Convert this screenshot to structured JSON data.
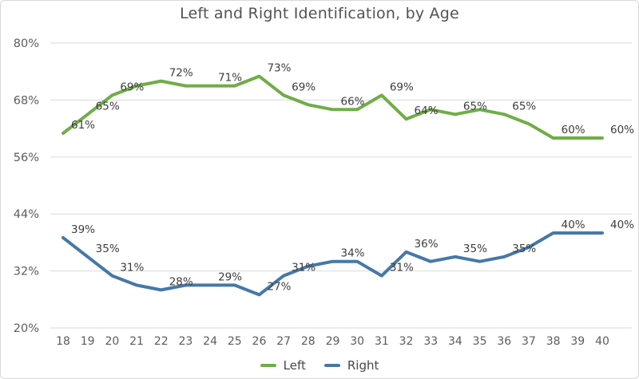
{
  "chart_data": {
    "type": "line",
    "title": "Left and Right Identification, by Age",
    "xlabel": "",
    "ylabel": "",
    "x": [
      18,
      19,
      20,
      21,
      22,
      23,
      24,
      25,
      26,
      27,
      28,
      29,
      30,
      31,
      32,
      33,
      34,
      35,
      36,
      37,
      38,
      39,
      40
    ],
    "y_axis": {
      "min": 20,
      "max": 80,
      "ticks": [
        80,
        68,
        56,
        44,
        32,
        20
      ],
      "tick_suffix": "%"
    },
    "grid": true,
    "legend_position": "bottom",
    "labeled_x": [
      18,
      19,
      20,
      22,
      24,
      26,
      27,
      29,
      31,
      32,
      34,
      36,
      38,
      40
    ],
    "data_label_suffix": "%",
    "colors": {
      "grid": "#d9d9d9",
      "axis_text": "#5c5c5c",
      "data_label_text": "#3d3d3d"
    },
    "series": [
      {
        "name": "Left",
        "color": "#70AD47",
        "values": [
          61,
          65,
          69,
          71,
          72,
          71,
          71,
          71,
          73,
          69,
          67,
          66,
          66,
          69,
          64,
          66,
          65,
          66,
          65,
          63,
          60,
          60,
          60
        ],
        "labeled_values": [
          61,
          65,
          69,
          72,
          71,
          73,
          69,
          66,
          69,
          64,
          65,
          65,
          60,
          60
        ]
      },
      {
        "name": "Right",
        "color": "#4678A8",
        "values": [
          39,
          35,
          31,
          29,
          28,
          29,
          29,
          29,
          27,
          31,
          33,
          34,
          34,
          31,
          36,
          34,
          35,
          34,
          35,
          37,
          40,
          40,
          40
        ],
        "labeled_values": [
          39,
          35,
          31,
          28,
          29,
          27,
          31,
          34,
          31,
          36,
          35,
          35,
          40,
          40
        ]
      }
    ]
  }
}
